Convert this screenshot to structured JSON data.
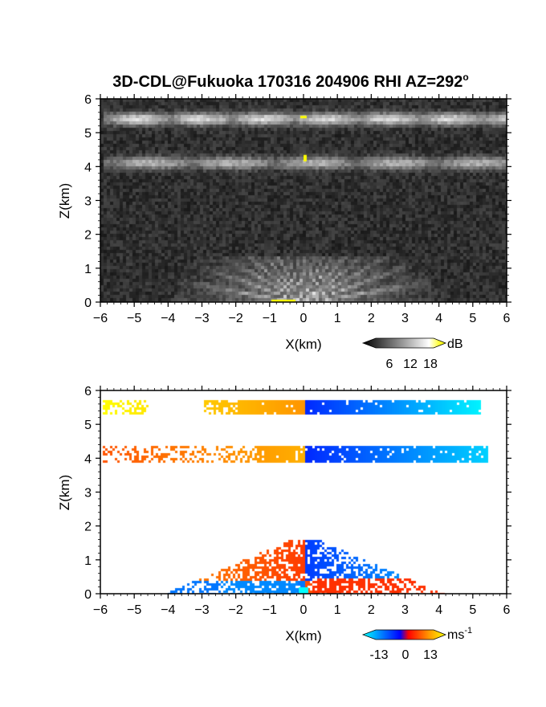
{
  "title_main": "3D-CDL@Fukuoka 170316 204906 RHI AZ=292",
  "title_sup": "o",
  "chart_data": [
    {
      "type": "heatmap",
      "panel": "intensity",
      "xlabel": "X(km)",
      "ylabel": "Z(km)",
      "xlim": [
        -6,
        6
      ],
      "ylim": [
        0,
        6
      ],
      "xticks": [
        "-6",
        "-5",
        "-4",
        "-3",
        "-2",
        "-1",
        "0",
        "1",
        "2",
        "3",
        "4",
        "5",
        "6"
      ],
      "yticks": [
        "0",
        "1",
        "2",
        "3",
        "4",
        "5",
        "6"
      ],
      "background": "noise",
      "layers": [
        {
          "x": [
            -6,
            6
          ],
          "z": [
            5.45,
            5.45
          ],
          "value": 11
        },
        {
          "x": [
            -6,
            6
          ],
          "z": [
            4.15,
            4.15
          ],
          "value": 9
        },
        {
          "x": [
            -4,
            4
          ],
          "z": [
            0,
            1.3
          ],
          "value": 12,
          "shape": "fan"
        }
      ],
      "colorbar": {
        "unit": "dB",
        "ticks": [
          "6",
          "12",
          "18"
        ],
        "range": [
          0,
          20
        ],
        "colors": [
          "#000000",
          "#ffffff",
          "#ffff00"
        ]
      }
    },
    {
      "type": "heatmap",
      "panel": "velocity",
      "xlabel": "X(km)",
      "ylabel": "Z(km)",
      "xlim": [
        -6,
        6
      ],
      "ylim": [
        0,
        6
      ],
      "xticks": [
        "-6",
        "-5",
        "-4",
        "-3",
        "-2",
        "-1",
        "0",
        "1",
        "2",
        "3",
        "4",
        "5",
        "6"
      ],
      "yticks": [
        "0",
        "1",
        "2",
        "3",
        "4",
        "5",
        "6"
      ],
      "layers": [
        {
          "z": [
            5.55,
            5.55
          ],
          "x": [
            -6.0,
            5.2
          ],
          "value_left": 13,
          "value_right": -13
        },
        {
          "z": [
            4.15,
            4.15
          ],
          "x": [
            -6.0,
            5.3
          ],
          "value_left": 9,
          "value_right": -11
        },
        {
          "z": [
            0,
            1.6
          ],
          "x": [
            -4.2,
            3.9
          ],
          "value_left": 7,
          "value_right": -9
        }
      ],
      "colorbar": {
        "unit": "ms",
        "unit_sup": "-1",
        "ticks": [
          "-13",
          "0",
          "13"
        ],
        "range": [
          -15,
          15
        ],
        "colors": [
          "#00ffff",
          "#0000ff",
          "#ff0000",
          "#ffff00"
        ]
      }
    }
  ]
}
